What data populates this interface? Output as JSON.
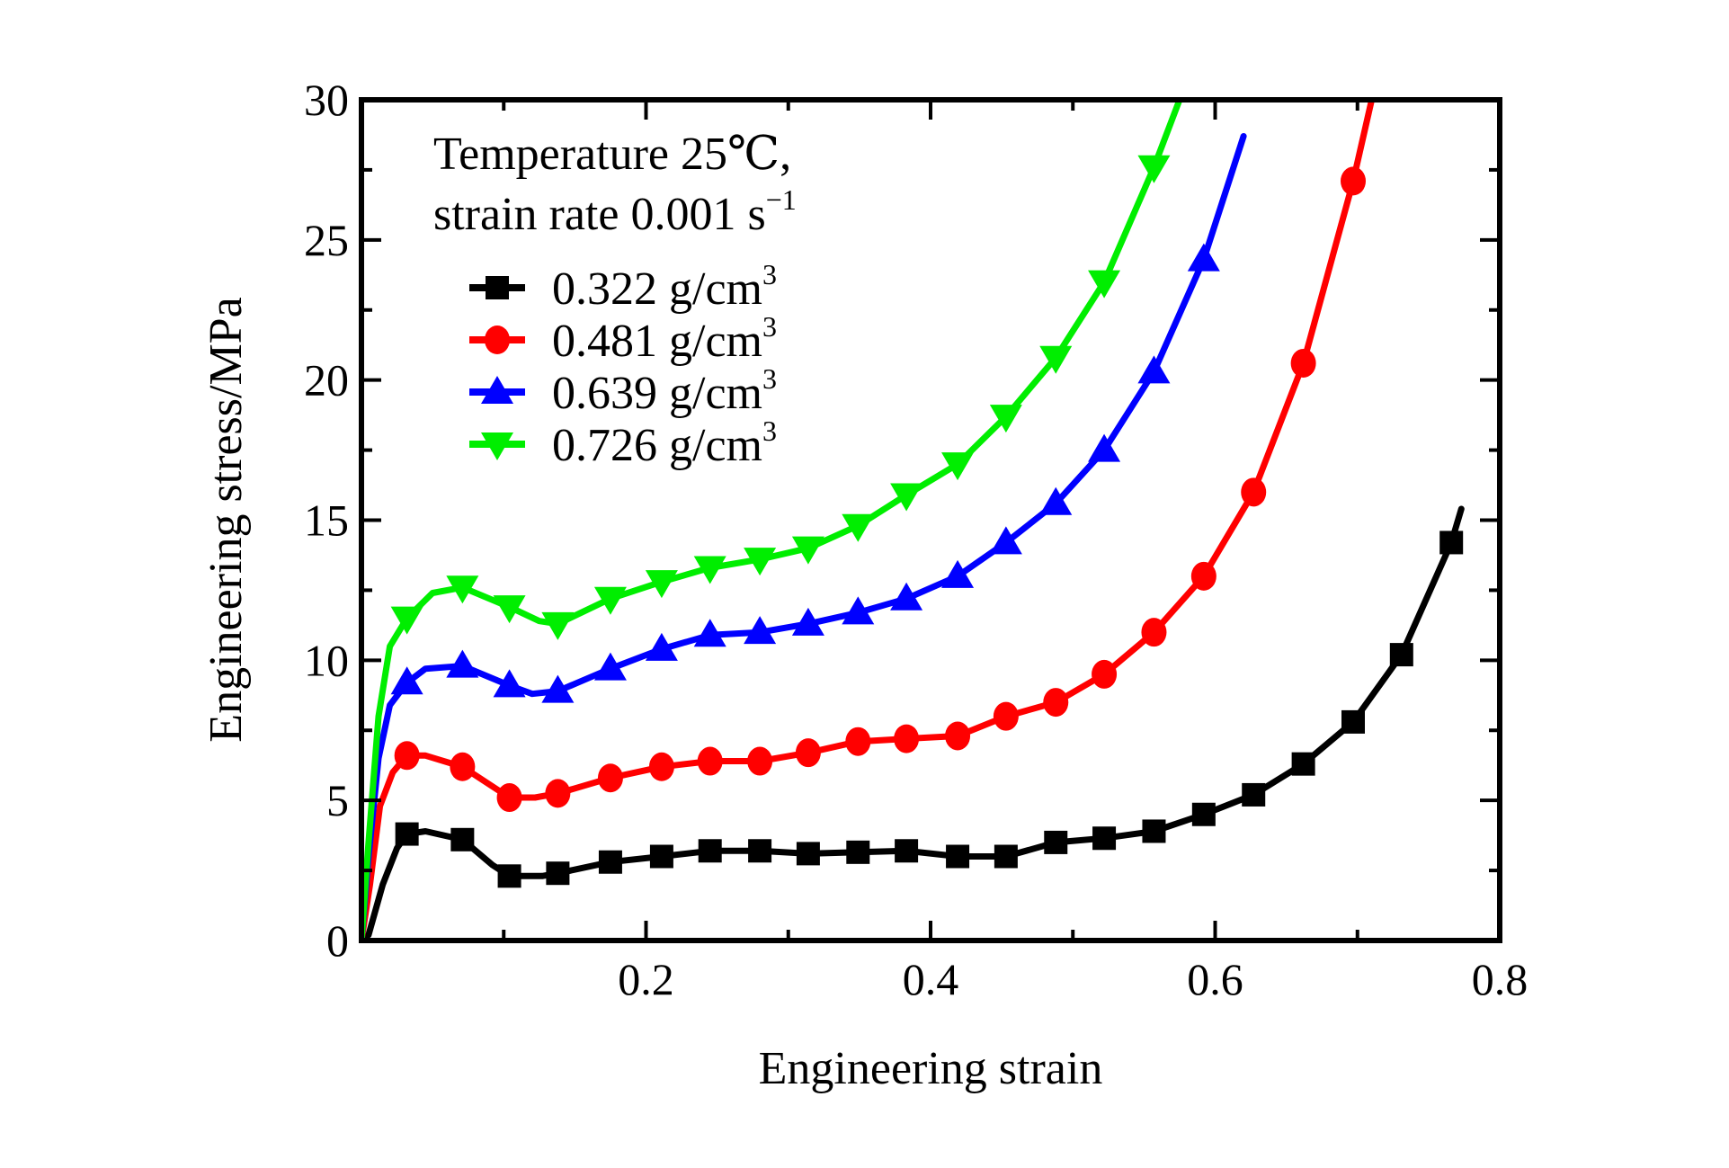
{
  "chart_data": {
    "type": "line",
    "title": "",
    "xlabel": "Engineering strain",
    "ylabel": "Engineering stress/MPa",
    "xlim": [
      0,
      0.8
    ],
    "ylim": [
      0,
      30
    ],
    "x_ticks": [
      0.2,
      0.4,
      0.6,
      0.8
    ],
    "x_tick_labels": [
      "0.2",
      "0.4",
      "0.6",
      "0.8"
    ],
    "x_minor_ticks": [
      0.1,
      0.3,
      0.5,
      0.7
    ],
    "y_ticks": [
      0,
      5,
      10,
      15,
      20,
      25,
      30
    ],
    "y_tick_labels": [
      "0",
      "5",
      "10",
      "15",
      "20",
      "25",
      "30"
    ],
    "y_minor_ticks": [
      2.5,
      7.5,
      12.5,
      17.5,
      22.5,
      27.5
    ],
    "grid": false,
    "legend": {
      "placement": "top-left",
      "header_line1": "Temperature 25℃,",
      "header_line2": "strain rate 0.001 s",
      "header_line2_sup": "−1"
    },
    "series": [
      {
        "name": "0.322 g/cm3",
        "label": "0.322 g/cm",
        "label_sup": "3",
        "color": "#000000",
        "marker": "square",
        "x": [
          0.0,
          0.005,
          0.015,
          0.025,
          0.032,
          0.045,
          0.071,
          0.092,
          0.104,
          0.127,
          0.138,
          0.175,
          0.211,
          0.245,
          0.28,
          0.314,
          0.349,
          0.383,
          0.419,
          0.453,
          0.488,
          0.522,
          0.557,
          0.592,
          0.627,
          0.662,
          0.697,
          0.731,
          0.766,
          0.773
        ],
        "y": [
          0.0,
          0.2,
          2.0,
          3.3,
          3.8,
          3.9,
          3.6,
          2.7,
          2.3,
          2.3,
          2.4,
          2.8,
          3.0,
          3.2,
          3.2,
          3.1,
          3.15,
          3.2,
          3.0,
          3.0,
          3.5,
          3.65,
          3.9,
          4.5,
          5.2,
          6.3,
          7.8,
          10.2,
          14.2,
          15.4
        ],
        "markers_x": [
          0.032,
          0.071,
          0.104,
          0.138,
          0.175,
          0.211,
          0.245,
          0.28,
          0.314,
          0.349,
          0.383,
          0.419,
          0.453,
          0.488,
          0.522,
          0.557,
          0.592,
          0.627,
          0.662,
          0.697,
          0.731,
          0.766
        ],
        "markers_y": [
          3.8,
          3.6,
          2.3,
          2.4,
          2.8,
          3.0,
          3.2,
          3.2,
          3.1,
          3.15,
          3.2,
          3.0,
          3.0,
          3.5,
          3.65,
          3.9,
          4.5,
          5.2,
          6.3,
          7.8,
          10.2,
          14.2
        ]
      },
      {
        "name": "0.481 g/cm3",
        "label": "0.481 g/cm",
        "label_sup": "3",
        "color": "#ff0000",
        "marker": "circle",
        "x": [
          0.0,
          0.006,
          0.013,
          0.022,
          0.032,
          0.045,
          0.071,
          0.104,
          0.122,
          0.138,
          0.175,
          0.211,
          0.245,
          0.28,
          0.314,
          0.349,
          0.383,
          0.419,
          0.453,
          0.488,
          0.522,
          0.557,
          0.592,
          0.627,
          0.662,
          0.697,
          0.71
        ],
        "y": [
          0.0,
          2.0,
          4.8,
          6.0,
          6.6,
          6.6,
          6.2,
          5.1,
          5.1,
          5.25,
          5.8,
          6.2,
          6.4,
          6.4,
          6.7,
          7.1,
          7.2,
          7.3,
          8.0,
          8.5,
          9.5,
          11.0,
          13.0,
          16.0,
          20.6,
          27.1,
          30.0
        ],
        "markers_x": [
          0.032,
          0.071,
          0.104,
          0.138,
          0.175,
          0.211,
          0.245,
          0.28,
          0.314,
          0.349,
          0.383,
          0.419,
          0.453,
          0.488,
          0.522,
          0.557,
          0.592,
          0.627,
          0.662,
          0.697
        ],
        "markers_y": [
          6.6,
          6.2,
          5.1,
          5.25,
          5.8,
          6.2,
          6.4,
          6.4,
          6.7,
          7.1,
          7.2,
          7.3,
          8.0,
          8.5,
          9.5,
          11.0,
          13.0,
          16.0,
          20.6,
          27.1
        ]
      },
      {
        "name": "0.639 g/cm3",
        "label": "0.639 g/cm",
        "label_sup": "3",
        "color": "#0000ff",
        "marker": "triangle-up",
        "x": [
          0.0,
          0.005,
          0.012,
          0.02,
          0.032,
          0.045,
          0.071,
          0.104,
          0.12,
          0.138,
          0.175,
          0.211,
          0.245,
          0.28,
          0.314,
          0.349,
          0.383,
          0.419,
          0.453,
          0.488,
          0.522,
          0.557,
          0.592,
          0.62
        ],
        "y": [
          0.0,
          3.0,
          6.5,
          8.4,
          9.2,
          9.7,
          9.8,
          9.1,
          8.8,
          8.9,
          9.7,
          10.4,
          10.9,
          11.0,
          11.3,
          11.7,
          12.2,
          13.0,
          14.2,
          15.6,
          17.5,
          20.3,
          24.3,
          28.7
        ],
        "markers_x": [
          0.032,
          0.071,
          0.104,
          0.138,
          0.175,
          0.211,
          0.245,
          0.28,
          0.314,
          0.349,
          0.383,
          0.419,
          0.453,
          0.488,
          0.522,
          0.557,
          0.592
        ],
        "markers_y": [
          9.2,
          9.8,
          9.1,
          8.9,
          9.7,
          10.4,
          10.9,
          11.0,
          11.3,
          11.7,
          12.2,
          13.0,
          14.2,
          15.6,
          17.5,
          20.3,
          24.3
        ]
      },
      {
        "name": "0.726 g/cm3",
        "label": "0.726 g/cm",
        "label_sup": "3",
        "color": "#00ee00",
        "marker": "triangle-down",
        "x": [
          0.0,
          0.005,
          0.012,
          0.02,
          0.032,
          0.05,
          0.071,
          0.104,
          0.125,
          0.138,
          0.175,
          0.211,
          0.245,
          0.28,
          0.314,
          0.349,
          0.383,
          0.419,
          0.453,
          0.488,
          0.522,
          0.557,
          0.575
        ],
        "y": [
          0.0,
          3.5,
          8.0,
          10.5,
          11.5,
          12.4,
          12.6,
          11.9,
          11.4,
          11.3,
          12.2,
          12.8,
          13.3,
          13.6,
          14.0,
          14.8,
          15.9,
          17.0,
          18.7,
          20.8,
          23.5,
          27.6,
          30.0
        ],
        "markers_x": [
          0.032,
          0.071,
          0.104,
          0.138,
          0.175,
          0.211,
          0.245,
          0.28,
          0.314,
          0.349,
          0.383,
          0.419,
          0.453,
          0.488,
          0.522,
          0.557
        ],
        "markers_y": [
          11.5,
          12.6,
          11.9,
          11.3,
          12.2,
          12.8,
          13.3,
          13.6,
          14.0,
          14.8,
          15.9,
          17.0,
          18.7,
          20.8,
          23.5,
          27.6
        ]
      }
    ]
  }
}
